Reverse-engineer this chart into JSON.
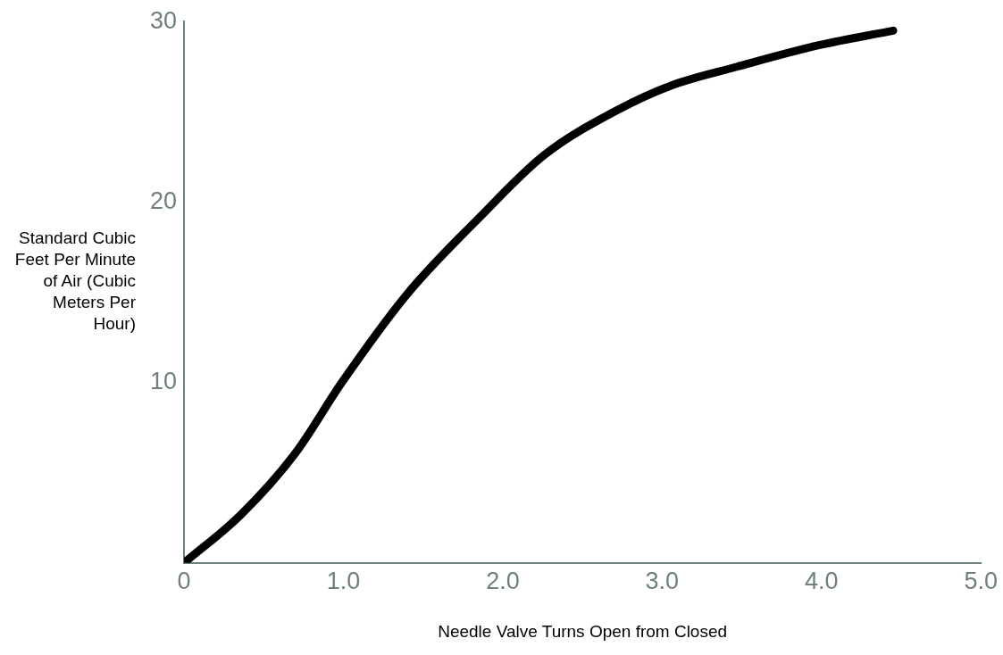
{
  "chart_data": {
    "type": "line",
    "xlabel": "Needle Valve Turns Open from Closed",
    "ylabel": "Standard Cubic Feet Per Minute of Air (Cubic Meters Per Hour)",
    "x": [
      0,
      0.36,
      0.7,
      0.99,
      1.4,
      1.86,
      2.26,
      2.72,
      3.07,
      3.47,
      3.99,
      4.45
    ],
    "series": [
      {
        "color": "#000000",
        "values": [
          0,
          2.7,
          6.1,
          10,
          14.9,
          19.2,
          22.6,
          25.1,
          26.5,
          27.5,
          28.7,
          29.5
        ]
      }
    ],
    "xlim": [
      0,
      5
    ],
    "xticks": [
      0,
      {
        "value": 1,
        "label": "1.0"
      },
      {
        "value": 2,
        "label": "2.0"
      },
      {
        "value": 3,
        "label": "3.0"
      },
      {
        "value": 4,
        "label": "4.0"
      },
      {
        "value": 5,
        "label": "5.0"
      }
    ],
    "ylim": [
      0,
      30
    ],
    "yticks": [
      10,
      20,
      30
    ],
    "grid": false,
    "legend": false,
    "marker": "none",
    "line_style": "solid"
  }
}
